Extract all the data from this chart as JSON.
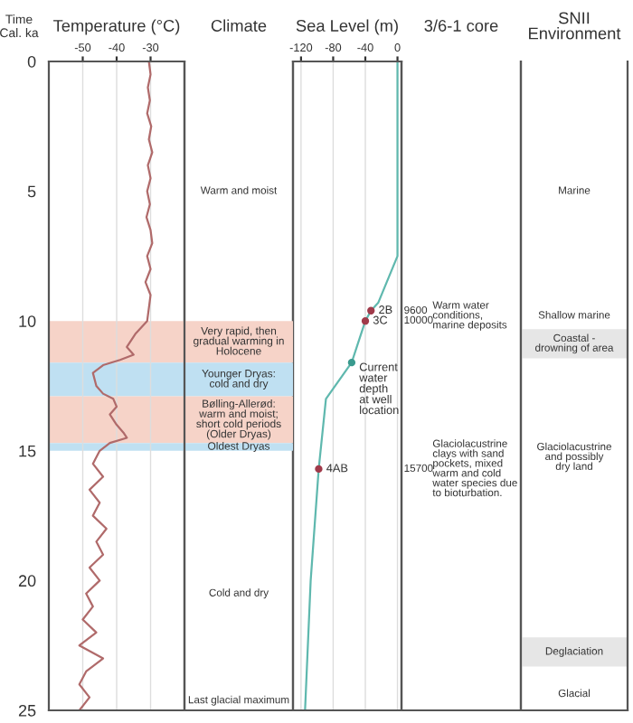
{
  "chart_data": [
    {
      "type": "line",
      "title": "Temperature (°C)",
      "ylabel": "Time\nCal. ka",
      "orientation": "horizontal",
      "xlim": [
        -60,
        -20
      ],
      "xticks": [
        -50,
        -40,
        -30
      ],
      "ylim": [
        25,
        0
      ],
      "yticks": [
        0,
        5,
        10,
        15,
        20,
        25
      ],
      "grid": "x",
      "marker": "none",
      "series": [
        {
          "color": "#b06a6a",
          "x": [
            0,
            0.5,
            1,
            1.5,
            2,
            2.5,
            3,
            3.5,
            4,
            4.5,
            5,
            5.5,
            6,
            6.5,
            7,
            7.5,
            8,
            8.5,
            9,
            9.5,
            10,
            10.5,
            11,
            11.3,
            11.5,
            11.7,
            12,
            12.5,
            12.8,
            13,
            13.3,
            13.6,
            14,
            14.3,
            14.5,
            14.7,
            15,
            15.5,
            16,
            16.5,
            17,
            17.5,
            18,
            18.5,
            19,
            19.5,
            20,
            20.5,
            21,
            21.5,
            22,
            22.5,
            23,
            23.5,
            24,
            24.5,
            25
          ],
          "values": [
            -30.5,
            -30,
            -30.8,
            -30.2,
            -31,
            -29.8,
            -30.5,
            -29.5,
            -30.8,
            -30,
            -31,
            -30.2,
            -31.2,
            -30,
            -29.5,
            -31,
            -30,
            -31.5,
            -30,
            -30.5,
            -31,
            -34.5,
            -37,
            -35,
            -39,
            -44,
            -47,
            -46,
            -44,
            -41,
            -40,
            -42,
            -40,
            -38,
            -37,
            -42,
            -45,
            -47,
            -44,
            -48,
            -45,
            -47,
            -43,
            -46,
            -44,
            -48,
            -45,
            -49,
            -47,
            -50,
            -46,
            -51,
            -44,
            -49,
            -51,
            -48,
            -51
          ]
        }
      ],
      "bands": [
        {
          "axis": "y",
          "from": 10,
          "to": 11.6,
          "color": "#f6d3c8",
          "label": "Very rapid, then\ngradual warming in\nHolocene"
        },
        {
          "axis": "y",
          "from": 11.6,
          "to": 12.9,
          "color": "#bfe0f2",
          "label": "Younger Dryas:\ncold and dry"
        },
        {
          "axis": "y",
          "from": 12.9,
          "to": 14.7,
          "color": "#f6d3c8",
          "label": "Bølling-Allerød:\nwarm and moist;\nshort cold periods\n(Older Dryas)"
        },
        {
          "axis": "y",
          "from": 14.7,
          "to": 15,
          "color": "#bfe0f2",
          "label": "Oldest Dryas"
        }
      ]
    },
    {
      "type": "other",
      "title": "Climate",
      "annotations": [
        "Warm and moist",
        "Cold and dry",
        "Last glacial maximum"
      ]
    },
    {
      "type": "line",
      "title": "Sea Level (m)",
      "orientation": "horizontal",
      "xlim": [
        -130,
        5
      ],
      "xticks": [
        -120,
        -80,
        -40,
        0
      ],
      "ylim": [
        25,
        0
      ],
      "tick_labels": "x",
      "grid": "x",
      "series": [
        {
          "type": "line",
          "color": "#5fb8ae",
          "x": [
            0,
            7.5,
            9.3,
            9.6,
            10,
            11.6,
            13,
            15.7,
            20,
            25
          ],
          "values": [
            0,
            0,
            -24,
            -33,
            -40,
            -57,
            -89,
            -98,
            -108,
            -115
          ]
        },
        {
          "type": "scatter",
          "name": "2B",
          "color": "#a03a4a",
          "marker": "circle",
          "x": [
            9.6
          ],
          "values": [
            -33
          ]
        },
        {
          "type": "scatter",
          "name": "3C",
          "color": "#a03a4a",
          "marker": "circle",
          "x": [
            10
          ],
          "values": [
            -40
          ]
        },
        {
          "type": "scatter",
          "name": "Current\nwater\ndepth\nat well\nlocation",
          "color": "#3a9a8e",
          "marker": "circle",
          "x": [
            11.6
          ],
          "values": [
            -57
          ]
        },
        {
          "type": "scatter",
          "name": "4AB",
          "color": "#a03a4a",
          "marker": "circle",
          "x": [
            15.7
          ],
          "values": [
            -98
          ]
        }
      ]
    },
    {
      "type": "other",
      "title": "3/6-1 core",
      "annotations": [
        "9600\n10000",
        "Warm water\nconditions,\nmarine deposits",
        "15700",
        "Glaciolacustrine\nclays with sand\npockets, mixed\nwarm and cold\nwater species due\nto bioturbation."
      ]
    },
    {
      "type": "other",
      "title": "SNII\nEnvironment",
      "annotations": [
        "Marine",
        "Shallow marine",
        "Coastal -\ndrowning of area",
        "Glaciolacustrine\nand possibly\ndry land",
        "Deglaciation",
        "Glacial"
      ]
    }
  ]
}
